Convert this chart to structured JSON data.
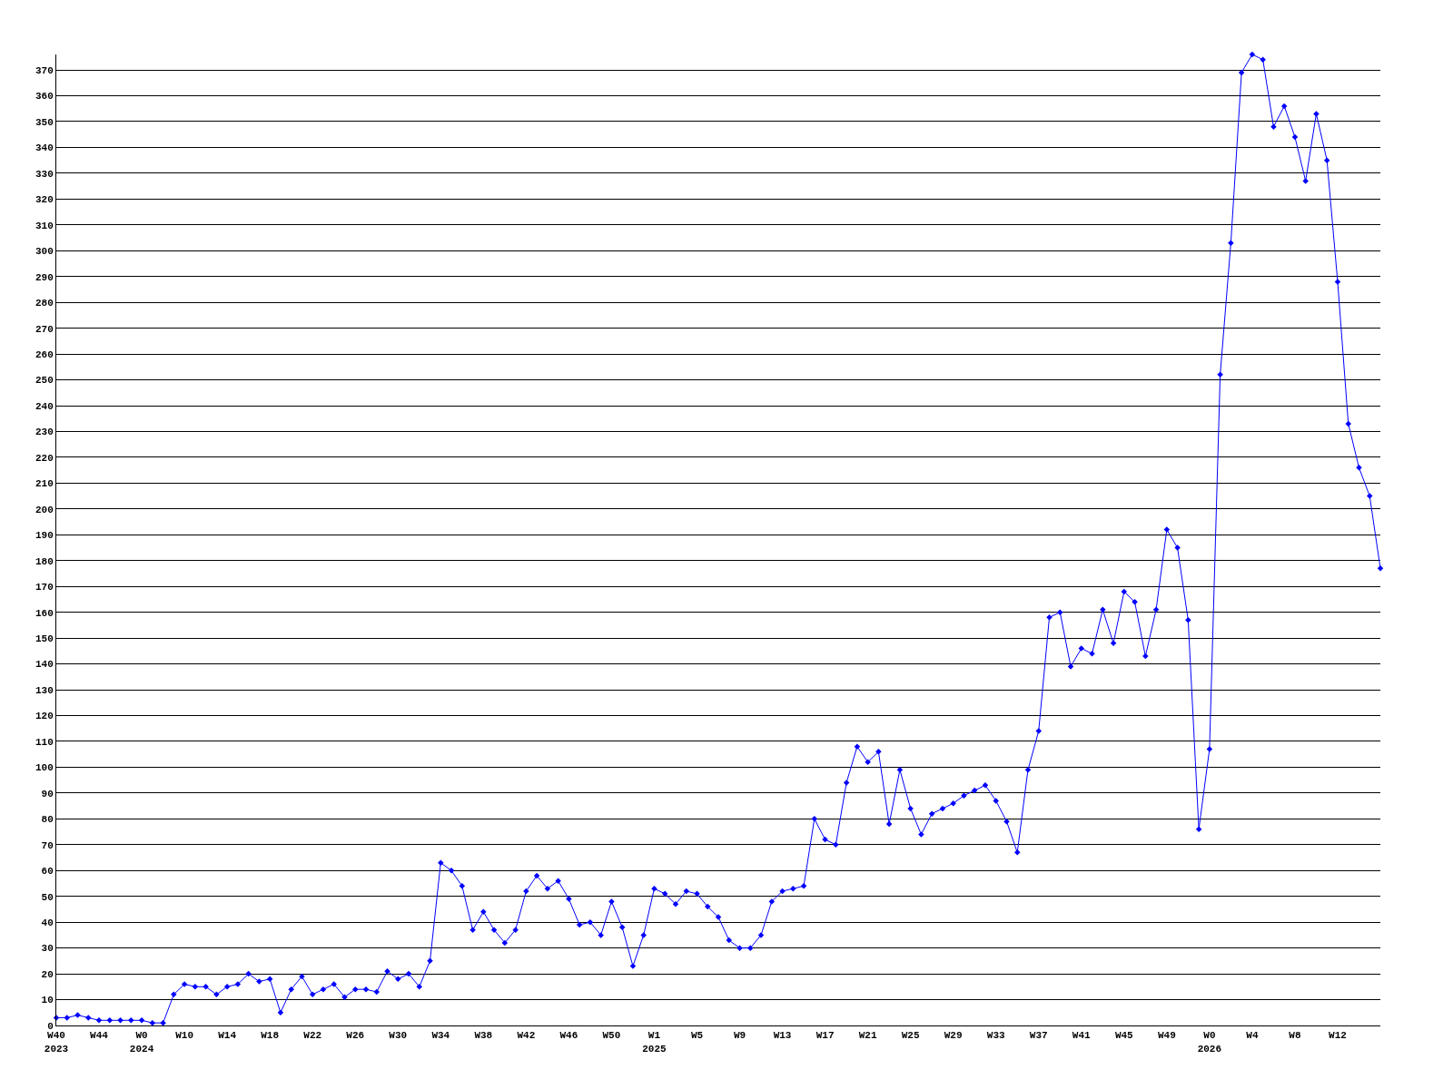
{
  "chart_data": {
    "type": "line",
    "categories": [
      "W40\n2023",
      null,
      null,
      null,
      "W44",
      null,
      null,
      null,
      "W0\n2024",
      null,
      null,
      null,
      "W10",
      null,
      null,
      null,
      "W14",
      null,
      null,
      null,
      "W18",
      null,
      null,
      null,
      "W22",
      null,
      null,
      null,
      "W26",
      null,
      null,
      null,
      "W30",
      null,
      null,
      null,
      "W34",
      null,
      null,
      null,
      "W38",
      null,
      null,
      null,
      "W42",
      null,
      null,
      null,
      "W46",
      null,
      null,
      null,
      "W50",
      null,
      null,
      null,
      "W1\n2025",
      null,
      null,
      null,
      "W5",
      null,
      null,
      null,
      "W9",
      null,
      null,
      null,
      "W13",
      null,
      null,
      null,
      "W17",
      null,
      null,
      null,
      "W21",
      null,
      null,
      null,
      "W25",
      null,
      null,
      null,
      "W29",
      null,
      null,
      null,
      "W33",
      null,
      null,
      null,
      "W37",
      null,
      null,
      null,
      "W41",
      null,
      null,
      null,
      "W45",
      null,
      null,
      null,
      "W49",
      null,
      null,
      null,
      "W0\n2026",
      null,
      null,
      null,
      "W4",
      null,
      null,
      null,
      "W8",
      null,
      null,
      null,
      "W12",
      null,
      null,
      null,
      null
    ],
    "series": [
      {
        "color": "#0000ff",
        "values": [
          3,
          3,
          4,
          3,
          2,
          2,
          2,
          2,
          2,
          1,
          1,
          12,
          16,
          15,
          15,
          12,
          15,
          16,
          20,
          17,
          18,
          5,
          14,
          19,
          12,
          14,
          16,
          11,
          14,
          14,
          13,
          21,
          18,
          20,
          15,
          25,
          63,
          60,
          54,
          37,
          44,
          37,
          32,
          37,
          52,
          58,
          53,
          56,
          49,
          39,
          40,
          35,
          48,
          38,
          23,
          35,
          53,
          51,
          47,
          52,
          51,
          46,
          42,
          33,
          30,
          30,
          35,
          48,
          52,
          53,
          54,
          80,
          72,
          70,
          94,
          108,
          102,
          106,
          78,
          99,
          84,
          74,
          82,
          84,
          86,
          89,
          91,
          93,
          87,
          79,
          67,
          99,
          114,
          158,
          160,
          139,
          146,
          144,
          161,
          148,
          168,
          164,
          143,
          161,
          192,
          185,
          157,
          76,
          107,
          252,
          303,
          369,
          376,
          374,
          348,
          356,
          344,
          327,
          353,
          335,
          288,
          233,
          216,
          205,
          177
        ]
      }
    ],
    "ylim": [
      0,
      376
    ],
    "yticks": [
      0,
      10,
      20,
      30,
      40,
      50,
      60,
      70,
      80,
      90,
      100,
      110,
      120,
      130,
      140,
      150,
      160,
      170,
      180,
      190,
      200,
      210,
      220,
      230,
      240,
      250,
      260,
      270,
      280,
      290,
      300,
      310,
      320,
      330,
      340,
      350,
      360,
      370
    ],
    "grid": "y",
    "marker": "diamond",
    "line_style": "solid",
    "legend": false
  }
}
